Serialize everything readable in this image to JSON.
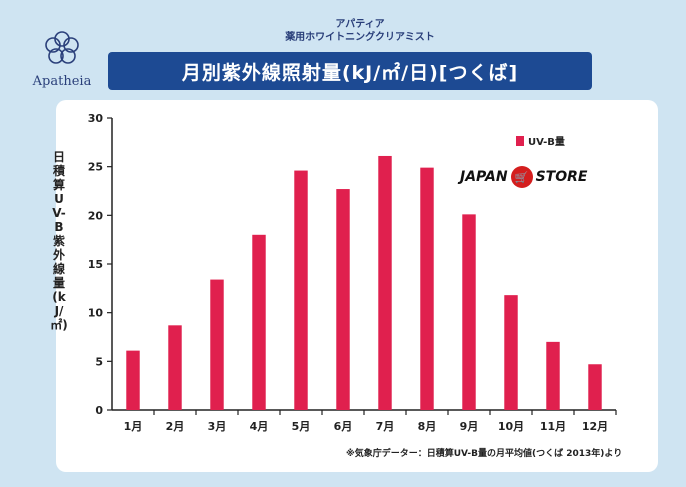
{
  "brand": {
    "name": "Apatheia"
  },
  "header": {
    "subtitle_line1": "アパティア",
    "subtitle_line2": "薬用ホワイトニングクリアミスト",
    "title": "月別紫外線照射量(kJ/㎡/日)[つくば]"
  },
  "watermark": {
    "left": "JAPAN",
    "right": "STORE"
  },
  "footnote": "※気象庁データー：日積算UV-B量の月平均値(つくば 2013年)より",
  "chart_data": {
    "type": "bar",
    "title": "月別紫外線照射量(kJ/㎡/日)[つくば]",
    "xlabel": "",
    "ylabel": "日積算UV-B紫外線量(kJ/㎡)",
    "categories": [
      "1月",
      "2月",
      "3月",
      "4月",
      "5月",
      "6月",
      "7月",
      "8月",
      "9月",
      "10月",
      "11月",
      "12月"
    ],
    "series": [
      {
        "name": "UV-B量",
        "values": [
          6.1,
          8.7,
          13.4,
          18.0,
          24.6,
          22.7,
          26.1,
          24.9,
          20.1,
          11.8,
          7.0,
          4.7
        ]
      }
    ],
    "ylim": [
      0,
      30
    ],
    "yticks": [
      0,
      5,
      10,
      15,
      20,
      25,
      30
    ],
    "bar_color": "#e0204e",
    "legend_position": "top-right",
    "grid": false
  }
}
